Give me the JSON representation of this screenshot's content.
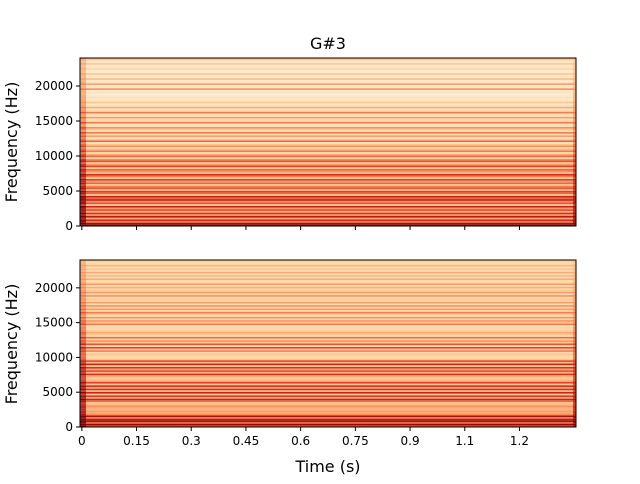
{
  "chart_data": {
    "type": "heatmap",
    "title": "G#3",
    "xlabel": "Time (s)",
    "colormap": "OrRd",
    "xlim": [
      -0.005,
      1.355
    ],
    "x_ticks": [
      0,
      0.15,
      0.3,
      0.45,
      0.6,
      0.75,
      0.9,
      1.05,
      1.2
    ],
    "x_tick_labels": [
      "0",
      "0.15",
      "0.3",
      "0.45",
      "0.6",
      "0.75",
      "0.9",
      "1.1",
      "1.2"
    ],
    "subplots": [
      {
        "ylabel": "Frequency (Hz)",
        "ylim": [
          0,
          24000
        ],
        "y_ticks": [
          0,
          5000,
          10000,
          15000,
          20000
        ],
        "y_tick_labels": [
          "0",
          "5000",
          "10000",
          "15000",
          "20000"
        ],
        "show_x_tick_labels": false,
        "band_hz": 240,
        "band_intensity": [
          0.95,
          0.9,
          0.55,
          0.8,
          0.4,
          0.85,
          0.5,
          0.75,
          0.35,
          0.7,
          0.45,
          0.8,
          0.3,
          0.65,
          0.5,
          0.85,
          0.6,
          0.8,
          0.3,
          0.6,
          0.7,
          0.35,
          0.65,
          0.55,
          0.3,
          0.6,
          0.45,
          0.7,
          0.3,
          0.55,
          0.75,
          0.35,
          0.5,
          0.6,
          0.3,
          0.7,
          0.45,
          0.3,
          0.65,
          0.5,
          0.25,
          0.6,
          0.4,
          0.2,
          0.55,
          0.35,
          0.2,
          0.5,
          0.3,
          0.15,
          0.6,
          0.3,
          0.15,
          0.45,
          0.2,
          0.55,
          0.15,
          0.3,
          0.5,
          0.2,
          0.15,
          0.55,
          0.25,
          0.15,
          0.45,
          0.2,
          0.15,
          0.55,
          0.25,
          0.12,
          0.4,
          0.2,
          0.1,
          0.3,
          0.15,
          0.1,
          0.2,
          0.1,
          0.08,
          0.15,
          0.1,
          0.5,
          0.12,
          0.1,
          0.45,
          0.15,
          0.1,
          0.35,
          0.1,
          0.12,
          0.3,
          0.1,
          0.1,
          0.25,
          0.12,
          0.1,
          0.3,
          0.1,
          0.2,
          0.35
        ]
      },
      {
        "ylabel": "Frequency (Hz)",
        "ylim": [
          0,
          24000
        ],
        "y_ticks": [
          0,
          5000,
          10000,
          15000,
          20000
        ],
        "y_tick_labels": [
          "0",
          "5000",
          "10000",
          "15000",
          "20000"
        ],
        "show_x_tick_labels": true,
        "band_hz": 240,
        "band_intensity": [
          0.7,
          0.95,
          0.6,
          0.9,
          0.85,
          0.55,
          0.9,
          0.5,
          0.4,
          0.45,
          0.35,
          0.4,
          0.5,
          0.35,
          0.3,
          0.6,
          0.8,
          0.4,
          0.75,
          0.3,
          0.8,
          0.35,
          0.75,
          0.4,
          0.8,
          0.3,
          0.7,
          0.45,
          0.3,
          0.3,
          0.4,
          0.75,
          0.35,
          0.7,
          0.4,
          0.75,
          0.3,
          0.8,
          0.35,
          0.7,
          0.3,
          0.2,
          0.25,
          0.3,
          0.2,
          0.55,
          0.3,
          0.7,
          0.2,
          0.65,
          0.3,
          0.5,
          0.2,
          0.6,
          0.25,
          0.3,
          0.4,
          0.3,
          0.2,
          0.25,
          0.2,
          0.55,
          0.3,
          0.5,
          0.2,
          0.5,
          0.2,
          0.3,
          0.55,
          0.25,
          0.45,
          0.2,
          0.5,
          0.2,
          0.45,
          0.25,
          0.3,
          0.2,
          0.5,
          0.2,
          0.45,
          0.3,
          0.2,
          0.4,
          0.2,
          0.45,
          0.25,
          0.2,
          0.4,
          0.2,
          0.35,
          0.2,
          0.4,
          0.2,
          0.3,
          0.2,
          0.35,
          0.25,
          0.2,
          0.3
        ]
      }
    ]
  }
}
